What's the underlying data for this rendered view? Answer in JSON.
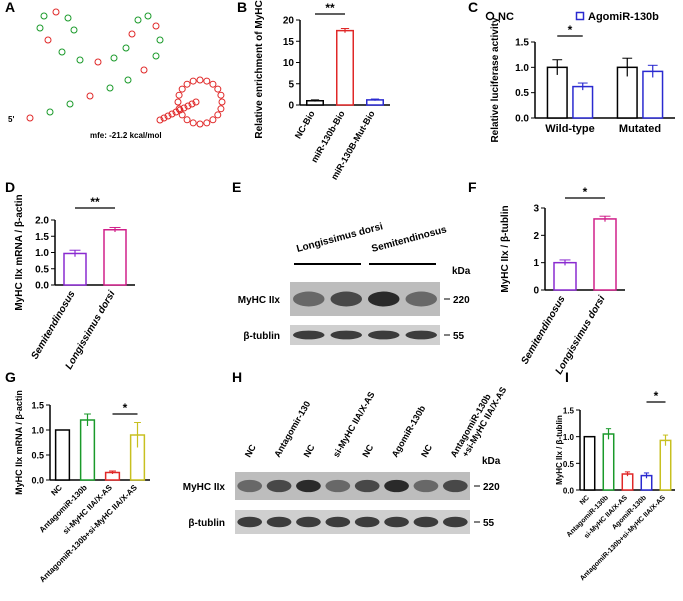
{
  "chart_data": [
    {
      "type": "structure",
      "panel": "A",
      "labels": [
        "5'",
        "mfe: -21.2 kcal/mol"
      ]
    },
    {
      "type": "bar",
      "panel": "B",
      "ylabel": "Relative enrichment of MyHC IIx",
      "categories": [
        "NC-Bio",
        "miR-130b-Bio",
        "miR-130B-Mut-Bio"
      ],
      "values": [
        1,
        17.5,
        1.2
      ],
      "errors": [
        0.2,
        0.5,
        0.2
      ],
      "colors": [
        "#000000",
        "#e02828",
        "#2a2ad0"
      ],
      "ylim": [
        0,
        20
      ],
      "yticks": [
        0,
        5,
        10,
        15,
        20
      ],
      "significance": "**"
    },
    {
      "type": "grouped_bar",
      "panel": "C",
      "ylabel": "Relative luciferase activity",
      "categories": [
        "Wild-type",
        "Mutated"
      ],
      "series": [
        {
          "name": "NC",
          "color": "#000000",
          "values": [
            1.0,
            1.0
          ],
          "errors": [
            0.15,
            0.18
          ]
        },
        {
          "name": "AgomiR-130b",
          "color": "#2a2ad0",
          "values": [
            0.62,
            0.92
          ],
          "errors": [
            0.07,
            0.12
          ]
        }
      ],
      "ylim": [
        0,
        1.5
      ],
      "yticks": [
        {
          "value": 0,
          "label": "0.0"
        },
        {
          "value": 0.5,
          "label": "0.5"
        },
        {
          "value": 1,
          "label": "1.0"
        },
        {
          "value": 1.5,
          "label": "1.5"
        }
      ],
      "significance": "*"
    },
    {
      "type": "bar",
      "panel": "D",
      "ylabel": "MyHC IIx mRNA / β-actin",
      "categories": [
        "Semitendinosus",
        "Longissimus dorsi"
      ],
      "italic_categories": true,
      "values": [
        0.97,
        1.7
      ],
      "errors": [
        0.1,
        0.07
      ],
      "colors": [
        "#8a2bd0",
        "#d0208a"
      ],
      "ylim": [
        0,
        2
      ],
      "yticks": [
        {
          "value": 0,
          "label": "0.0"
        },
        {
          "value": 0.5,
          "label": "0.5"
        },
        {
          "value": 1,
          "label": "1.0"
        },
        {
          "value": 1.5,
          "label": "1.5"
        },
        {
          "value": 2,
          "label": "2.0"
        }
      ],
      "significance": "**"
    },
    {
      "type": "blot",
      "panel": "E",
      "lanes": [
        "Longissimus dorsi",
        "Semitendinosus"
      ],
      "kda": "kDa",
      "rows": [
        {
          "name": "MyHC IIx",
          "size": "220"
        },
        {
          "name": "β-tublin",
          "size": "55"
        }
      ]
    },
    {
      "type": "bar",
      "panel": "F",
      "ylabel": "MyHC IIx / β-tublin",
      "categories": [
        "Semitendinosus",
        "Longissimus dorsi"
      ],
      "italic_categories": true,
      "values": [
        1.0,
        2.6
      ],
      "errors": [
        0.1,
        0.1
      ],
      "colors": [
        "#8a2bd0",
        "#d0208a"
      ],
      "ylim": [
        0,
        3
      ],
      "yticks": [
        0,
        1,
        2,
        3
      ],
      "significance": "*"
    },
    {
      "type": "bar",
      "panel": "G",
      "ylabel": "MyHC IIx mRNA / β-actin",
      "categories": [
        "NC",
        "AntagomiR-130b",
        "si-MyHC IIA/X-AS",
        "AntagomiR-130b+si-MyHC IIA/X-AS"
      ],
      "values": [
        1.0,
        1.2,
        0.15,
        0.9
      ],
      "errors": [
        0,
        0.12,
        0.03,
        0.25
      ],
      "colors": [
        "#000000",
        "#1a9a2a",
        "#e02828",
        "#c8c020"
      ],
      "ylim": [
        0,
        1.5
      ],
      "yticks": [
        {
          "value": 0,
          "label": "0.0"
        },
        {
          "value": 0.5,
          "label": "0.5"
        },
        {
          "value": 1,
          "label": "1.0"
        },
        {
          "value": 1.5,
          "label": "1.5"
        }
      ],
      "significance": "*"
    },
    {
      "type": "blot",
      "panel": "H",
      "lanes": [
        "NC",
        "Antagomir-130",
        "NC",
        "si-MyHC IIA/X-AS",
        "NC",
        "AgomiR-130b",
        "NC",
        "AntagomiR-130b +si-MyHC IIA/X-AS"
      ],
      "kda": "kDa",
      "rows": [
        {
          "name": "MyHC IIx",
          "size": "220"
        },
        {
          "name": "β-tublin",
          "size": "55"
        }
      ]
    },
    {
      "type": "bar",
      "panel": "I",
      "ylabel": "MyHC IIx / β-tublin",
      "categories": [
        "NC",
        "AntagomiR-130b",
        "si-MyHC IIA/X-AS",
        "AgomiR-130b",
        "AntagomiR-130b+si-MyHC IIA/X-AS"
      ],
      "values": [
        1.0,
        1.05,
        0.3,
        0.27,
        0.93
      ],
      "errors": [
        0,
        0.1,
        0.04,
        0.05,
        0.1
      ],
      "colors": [
        "#000000",
        "#1a9a2a",
        "#e02828",
        "#2a2ad0",
        "#c8c020"
      ],
      "ylim": [
        0,
        1.5
      ],
      "yticks": [
        {
          "value": 0,
          "label": "0.0"
        },
        {
          "value": 0.5,
          "label": "0.5"
        },
        {
          "value": 1,
          "label": "1.0"
        },
        {
          "value": 1.5,
          "label": "1.5"
        }
      ],
      "significance": "*"
    }
  ]
}
